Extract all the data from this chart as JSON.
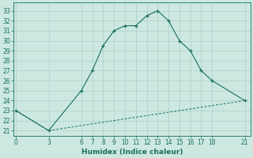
{
  "xlabel": "Humidex (Indice chaleur)",
  "bg_color": "#cce8e0",
  "grid_color": "#b0d4cc",
  "line_color": "#1a6e5e",
  "line1_x": [
    0,
    3,
    6,
    7,
    8,
    9,
    10,
    11,
    12,
    13,
    14,
    15,
    16,
    17,
    18,
    21
  ],
  "line1_y": [
    23,
    21,
    25,
    27,
    29.5,
    31,
    31.5,
    31.5,
    32.5,
    33,
    32,
    30,
    29,
    27,
    26,
    24
  ],
  "line2_x": [
    0,
    3,
    21
  ],
  "line2_y": [
    23,
    21,
    24
  ],
  "xlim": [
    -0.2,
    21.5
  ],
  "ylim": [
    20.5,
    33.8
  ],
  "xticks": [
    0,
    3,
    6,
    7,
    8,
    9,
    10,
    11,
    12,
    13,
    14,
    15,
    16,
    17,
    18,
    21
  ],
  "yticks": [
    21,
    22,
    23,
    24,
    25,
    26,
    27,
    28,
    29,
    30,
    31,
    32,
    33
  ],
  "tick_fontsize": 5.5,
  "label_fontsize": 6.5
}
